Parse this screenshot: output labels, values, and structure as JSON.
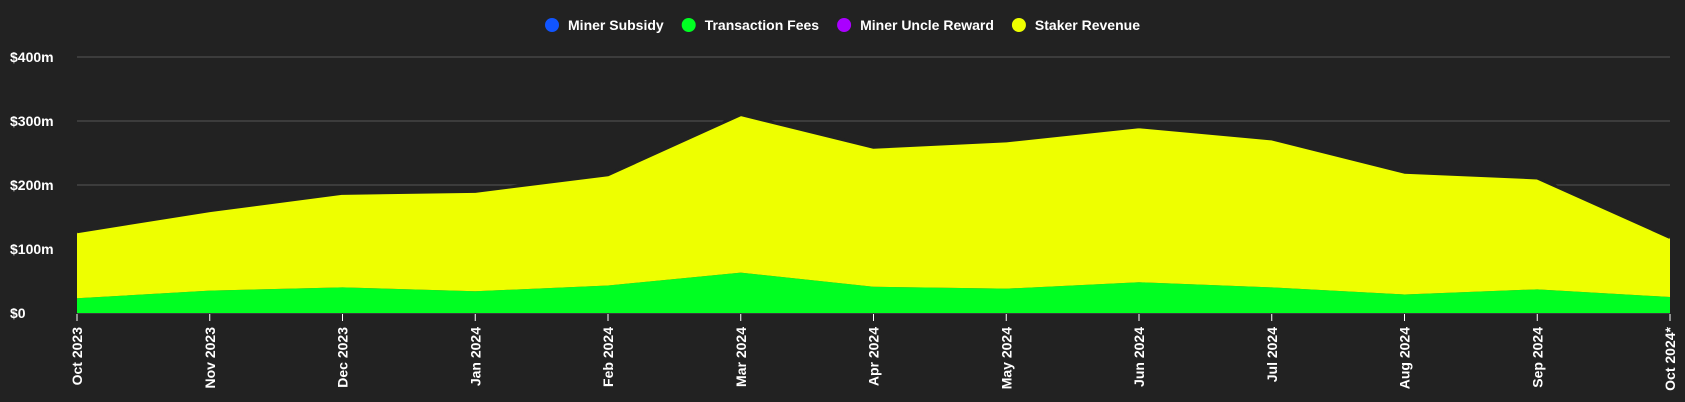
{
  "chart_data": {
    "type": "area",
    "stacked": true,
    "categories": [
      "Oct 2023",
      "Nov 2023",
      "Dec 2023",
      "Jan 2024",
      "Feb 2024",
      "Mar 2024",
      "Apr 2024",
      "May 2024",
      "Jun 2024",
      "Jul 2024",
      "Aug 2024",
      "Sep 2024",
      "Oct 2024*"
    ],
    "series": [
      {
        "name": "Miner Subsidy",
        "color": "#1155ff",
        "values": [
          0,
          0,
          0,
          0,
          0,
          0,
          0,
          0,
          0,
          0,
          0,
          0,
          0
        ]
      },
      {
        "name": "Transaction Fees",
        "color": "#00ff22",
        "values": [
          23,
          35,
          40,
          34,
          43,
          63,
          41,
          38,
          48,
          40,
          29,
          37,
          25
        ]
      },
      {
        "name": "Miner Uncle Reward",
        "color": "#aa00ff",
        "values": [
          0,
          0,
          0,
          0,
          0,
          0,
          0,
          0,
          0,
          0,
          0,
          0,
          0
        ]
      },
      {
        "name": "Staker Revenue",
        "color": "#eeff00",
        "values": [
          104,
          125,
          147,
          156,
          173,
          247,
          218,
          231,
          243,
          232,
          191,
          174,
          93
        ]
      }
    ],
    "y_ticks": [
      {
        "value": 0,
        "label": "$0"
      },
      {
        "value": 100,
        "label": "$100m"
      },
      {
        "value": 200,
        "label": "$200m"
      },
      {
        "value": 300,
        "label": "$300m"
      },
      {
        "value": 400,
        "label": "$400m"
      }
    ],
    "ylim": [
      0,
      400
    ],
    "y_unit": "millions USD",
    "grid": true,
    "legend_position": "top-center",
    "outline_color": "#222222",
    "grid_color": "#555555",
    "background": "#222222"
  }
}
